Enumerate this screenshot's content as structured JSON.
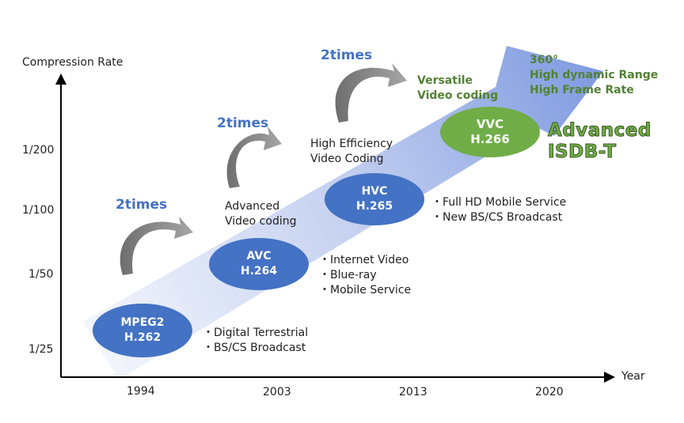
{
  "axes": {
    "y_title": "Compression Rate",
    "x_title": "Year",
    "y_ticks": [
      "1/200",
      "1/100",
      "1/50",
      "1/25"
    ],
    "x_ticks": [
      "1994",
      "2003",
      "2013",
      "2020"
    ]
  },
  "multiplier_label": "2times",
  "codecs": [
    {
      "line1": "MPEG2",
      "line2": "H.262",
      "color": "#4472c4"
    },
    {
      "line1": "AVC",
      "line2": "H.264",
      "color": "#4472c4"
    },
    {
      "line1": "HVC",
      "line2": "H.265",
      "color": "#4472c4"
    },
    {
      "line1": "VVC",
      "line2": "H.266",
      "color": "#70ad47"
    }
  ],
  "codec_names": {
    "avc": [
      "Advanced",
      "Video coding"
    ],
    "hevc": [
      "High Efficiency",
      "Video Coding"
    ],
    "vvc": [
      "Versatile",
      "Video coding"
    ]
  },
  "services": {
    "mpeg2": [
      "・Digital Terrestrial",
      "・BS/CS Broadcast"
    ],
    "avc": [
      "・Internet Video",
      "・Blue-ray",
      "・Mobile Service"
    ],
    "hevc": [
      "・Full HD Mobile Service",
      "・New BS/CS Broadcast"
    ]
  },
  "future_features": [
    "360°",
    "High dynamic Range",
    "High Frame Rate"
  ],
  "badge": [
    "Advanced",
    "ISDB-T"
  ],
  "colors": {
    "arrow_light": "#eef2fb",
    "arrow_dark": "#7f9ae0",
    "blue_oval": "#4472c4",
    "green_oval": "#70ad47",
    "curved_arrow": "#7f7f7f",
    "two_times_text": "#4472c4",
    "green_text": "#538135"
  }
}
